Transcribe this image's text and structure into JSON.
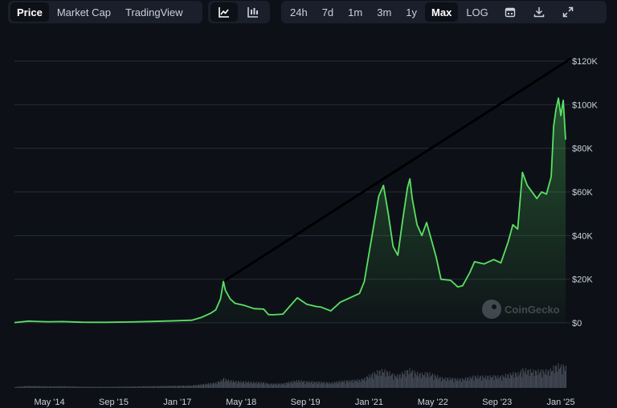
{
  "tabs": {
    "price": "Price",
    "market_cap": "Market Cap",
    "trading_view": "TradingView"
  },
  "chart_type_icons": [
    "line-chart-icon",
    "candlestick-icon"
  ],
  "ranges": {
    "h24": "24h",
    "d7": "7d",
    "m1": "1m",
    "m3": "3m",
    "y1": "1y",
    "max": "Max",
    "log": "LOG"
  },
  "toolbar_icons": [
    "calendar-icon",
    "download-icon",
    "expand-icon"
  ],
  "watermark": "CoinGecko",
  "colors": {
    "background": "#0d1117",
    "line": "#5ae064",
    "grid": "#262c36",
    "trendline": "#000000"
  },
  "chart_data": {
    "type": "area",
    "title": "",
    "xlabel": "",
    "ylabel": "",
    "ylim": [
      0,
      120000
    ],
    "yticks": [
      0,
      20000,
      40000,
      60000,
      80000,
      100000,
      120000
    ],
    "ytick_labels": [
      "$0",
      "$20K",
      "$40K",
      "$60K",
      "$80K",
      "$100K",
      "$120K"
    ],
    "xticks": [
      2014.33,
      2015.67,
      2017.0,
      2018.33,
      2019.67,
      2021.0,
      2022.33,
      2023.67,
      2025.0
    ],
    "xtick_labels": [
      "May '14",
      "Sep '15",
      "Jan '17",
      "May '18",
      "Sep '19",
      "Jan '21",
      "May '22",
      "Sep '23",
      "Jan '25"
    ],
    "xlim": [
      2013.6,
      2025.2
    ],
    "grid": true,
    "series": [
      {
        "x": [
          2013.6,
          2013.9,
          2014.0,
          2014.3,
          2014.6,
          2015.0,
          2015.5,
          2016.0,
          2016.5,
          2017.0,
          2017.3,
          2017.5,
          2017.7,
          2017.8,
          2017.9,
          2017.96,
          2018.0,
          2018.1,
          2018.2,
          2018.4,
          2018.6,
          2018.8,
          2018.9,
          2019.0,
          2019.2,
          2019.4,
          2019.5,
          2019.7,
          2019.9,
          2020.0,
          2020.2,
          2020.4,
          2020.6,
          2020.8,
          2020.9,
          2021.0,
          2021.1,
          2021.2,
          2021.3,
          2021.4,
          2021.5,
          2021.6,
          2021.7,
          2021.8,
          2021.85,
          2021.9,
          2022.0,
          2022.1,
          2022.2,
          2022.3,
          2022.4,
          2022.5,
          2022.7,
          2022.85,
          2022.95,
          2023.1,
          2023.2,
          2023.4,
          2023.6,
          2023.75,
          2023.9,
          2024.0,
          2024.1,
          2024.2,
          2024.3,
          2024.5,
          2024.6,
          2024.7,
          2024.8,
          2024.85,
          2024.9,
          2024.95,
          2025.0,
          2025.05,
          2025.1
        ],
        "y": [
          150,
          800,
          700,
          500,
          600,
          300,
          250,
          420,
          650,
          1000,
          1200,
          2500,
          4500,
          6000,
          11000,
          19000,
          15000,
          11000,
          9000,
          8000,
          6500,
          6300,
          3800,
          3700,
          4000,
          9000,
          11500,
          8500,
          7500,
          7200,
          5500,
          9500,
          11500,
          13500,
          19000,
          32000,
          45000,
          58000,
          63000,
          50000,
          35000,
          31000,
          47000,
          62000,
          66000,
          57000,
          45000,
          40000,
          46000,
          38000,
          30000,
          20000,
          19500,
          16500,
          17000,
          23000,
          28000,
          27000,
          29000,
          27500,
          37000,
          45000,
          43000,
          69000,
          63000,
          57000,
          60000,
          59000,
          67000,
          90000,
          98000,
          103000,
          95000,
          102000,
          84000
        ]
      }
    ],
    "annotation": {
      "type": "trendline",
      "from": [
        2018.0,
        19500
      ],
      "to": [
        2025.2,
        121000
      ]
    }
  }
}
